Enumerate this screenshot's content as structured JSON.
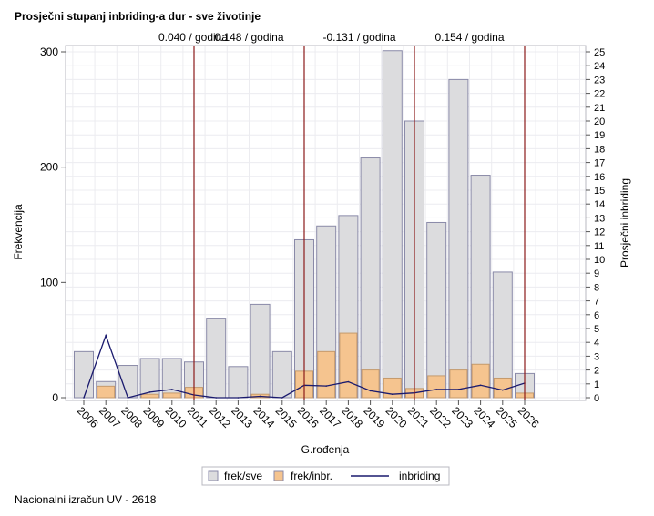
{
  "chart_data": {
    "type": "bar",
    "title": "Prosječni stupanj inbriding-a dur - sve životinje",
    "xlabel": "G.rođenja",
    "ylabel": "Frekvencija",
    "y2label": "Prosječni inbriding",
    "ylim": [
      0,
      300
    ],
    "y2lim": [
      0,
      25
    ],
    "yticks": [
      0,
      100,
      200,
      300
    ],
    "y2ticks": [
      0,
      1,
      2,
      3,
      4,
      5,
      6,
      7,
      8,
      9,
      10,
      11,
      12,
      13,
      14,
      15,
      16,
      17,
      18,
      19,
      20,
      21,
      22,
      23,
      24,
      25
    ],
    "categories": [
      "2006",
      "2007",
      "2008",
      "2009",
      "2010",
      "2011",
      "2012",
      "2013",
      "2014",
      "2015",
      "2016",
      "2017",
      "2018",
      "2019",
      "2020",
      "2021",
      "2022",
      "2023",
      "2024",
      "2025",
      "2026"
    ],
    "series": [
      {
        "name": "frek/sve",
        "type": "bar",
        "color": "#dcdcde",
        "values": [
          40,
          14,
          28,
          34,
          34,
          31,
          69,
          27,
          81,
          40,
          137,
          149,
          158,
          208,
          301,
          240,
          152,
          276,
          193,
          109,
          21
        ]
      },
      {
        "name": "frek/inbr.",
        "type": "bar",
        "color": "#f5c48f",
        "values": [
          0,
          10,
          0,
          3,
          4,
          9,
          0,
          0,
          3,
          0,
          23,
          40,
          56,
          24,
          17,
          8,
          19,
          24,
          29,
          17,
          4
        ]
      },
      {
        "name": "inbriding",
        "type": "line",
        "axis": "y2",
        "color": "#1a1a6e",
        "values": [
          0,
          4.5,
          0,
          0.4,
          0.6,
          0.2,
          0,
          0,
          0.1,
          0,
          0.9,
          0.85,
          1.15,
          0.5,
          0.25,
          0.35,
          0.6,
          0.6,
          0.9,
          0.55,
          1.05
        ]
      }
    ],
    "trend_markers": [
      {
        "after": "2006",
        "label": "0.040 / godina"
      },
      {
        "after": "2011",
        "label": "0.148 / godina"
      },
      {
        "after": "2016",
        "label": "-0.131 / godina"
      },
      {
        "after": "2021",
        "label": "0.154 / godina"
      }
    ],
    "marker_boundaries": [
      "2011",
      "2016",
      "2021",
      "2026"
    ],
    "grid": true,
    "legend_position": "bottom",
    "marker_color": "#8b1a1a"
  },
  "footnote": "Nacionalni izračun UV - 2618"
}
